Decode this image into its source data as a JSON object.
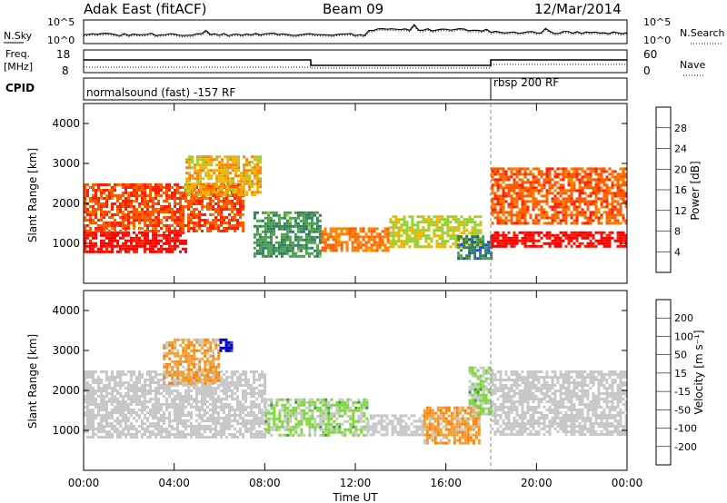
{
  "header": {
    "station": "Adak East (fitACF)",
    "beam": "Beam 09",
    "date": "12/Mar/2014"
  },
  "noise_panel": {
    "left_label": "N.Sky",
    "right_label": "N.Search",
    "left_ticks": [
      "10^5",
      "10^0"
    ],
    "right_ticks": [
      "10^5",
      "10^0"
    ]
  },
  "freq_panel": {
    "left_label_line1": "Freq.",
    "left_label_line2": "[MHz]",
    "right_label": "Nave",
    "left_ticks": [
      "18",
      "8"
    ],
    "right_ticks": [
      "60",
      "0"
    ]
  },
  "cpid_panel": {
    "label": "CPID",
    "modes": [
      {
        "name": "normalsound (fast) -157 RF",
        "start_hour": 0
      },
      {
        "name": "rbsp 200 RF",
        "start_hour": 18
      }
    ]
  },
  "colors": {
    "power": [
      "#0000e6",
      "#1c4fd6",
      "#2f7f5f",
      "#4ca04c",
      "#8fd22f",
      "#f0b400",
      "#ff8000",
      "#ff5a00",
      "#ff2000",
      "#ff0000"
    ],
    "velocity": [
      "#ff0000",
      "#ff4000",
      "#ff8000",
      "#f0a030",
      "#c8c8c8",
      "#c8c8c8",
      "#7ed63a",
      "#3a9a3a",
      "#2060c0",
      "#0000c8"
    ]
  },
  "chart_data": [
    {
      "type": "heatmap",
      "name": "power",
      "xlabel": "",
      "ylabel": "Slant Range [km]",
      "xlim": [
        0,
        24
      ],
      "ylim": [
        0,
        4500
      ],
      "y_ticks": [
        1000,
        2000,
        3000,
        4000
      ],
      "colorbar": {
        "label": "Power [dB]",
        "ticks": [
          4,
          8,
          12,
          16,
          20,
          24,
          28
        ],
        "range": [
          0,
          32
        ]
      },
      "regions": [
        {
          "x": [
            0,
            4.5
          ],
          "y": [
            800,
            1300
          ],
          "value": 30
        },
        {
          "x": [
            0,
            7.0
          ],
          "y": [
            1300,
            2500
          ],
          "value": 25
        },
        {
          "x": [
            4.5,
            7.8
          ],
          "y": [
            2200,
            3200
          ],
          "value": 18
        },
        {
          "x": [
            7.5,
            10.5
          ],
          "y": [
            700,
            1800
          ],
          "value": 10
        },
        {
          "x": [
            10.5,
            13.5
          ],
          "y": [
            800,
            1400
          ],
          "value": 22
        },
        {
          "x": [
            13.5,
            17.5
          ],
          "y": [
            900,
            1700
          ],
          "value": 16
        },
        {
          "x": [
            16.5,
            18.0
          ],
          "y": [
            600,
            1200
          ],
          "value": 8
        },
        {
          "x": [
            18.0,
            24
          ],
          "y": [
            900,
            1300
          ],
          "value": 30
        },
        {
          "x": [
            18.0,
            24
          ],
          "y": [
            1500,
            2900
          ],
          "value": 24
        }
      ]
    },
    {
      "type": "heatmap",
      "name": "velocity",
      "xlabel": "Time UT",
      "ylabel": "Slant Range [km]",
      "xlim": [
        0,
        24
      ],
      "ylim": [
        0,
        4500
      ],
      "y_ticks": [
        1000,
        2000,
        3000,
        4000
      ],
      "x_ticks": [
        "00:00",
        "04:00",
        "08:00",
        "12:00",
        "16:00",
        "20:00",
        "00:00"
      ],
      "colorbar": {
        "label": "Velocity [m s⁻¹]",
        "ticks": [
          -200,
          -100,
          -50,
          -15,
          15,
          50,
          100,
          200
        ],
        "range": [
          -250,
          250
        ]
      },
      "regions": [
        {
          "x": [
            0,
            8.0
          ],
          "y": [
            800,
            2500
          ],
          "value": 0
        },
        {
          "x": [
            3.5,
            6.0
          ],
          "y": [
            2200,
            3300
          ],
          "value": -80
        },
        {
          "x": [
            8.0,
            12.5
          ],
          "y": [
            900,
            1800
          ],
          "value": 60
        },
        {
          "x": [
            12.5,
            15.0
          ],
          "y": [
            900,
            1400
          ],
          "value": 0
        },
        {
          "x": [
            15.0,
            17.5
          ],
          "y": [
            700,
            1600
          ],
          "value": -80
        },
        {
          "x": [
            17.0,
            18.0
          ],
          "y": [
            1400,
            2600
          ],
          "value": 60
        },
        {
          "x": [
            18.0,
            24
          ],
          "y": [
            900,
            2500
          ],
          "value": 0
        },
        {
          "x": [
            6.0,
            6.5
          ],
          "y": [
            3000,
            3300
          ],
          "value": 230
        }
      ]
    }
  ]
}
